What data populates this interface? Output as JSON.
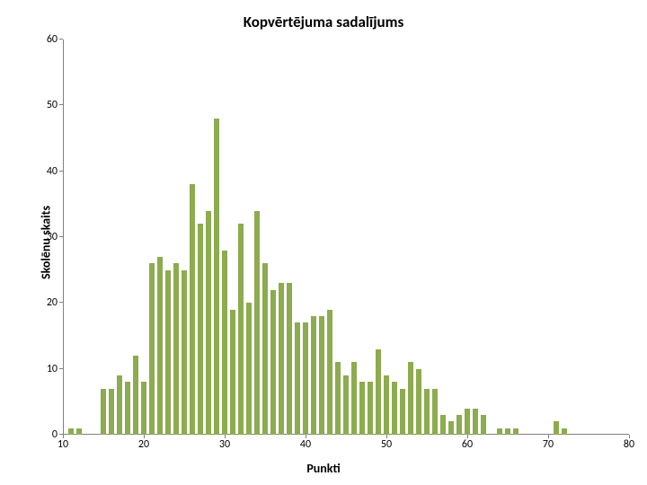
{
  "chart": {
    "type": "bar",
    "title": "Kopvērtējuma sadalījums",
    "title_fontsize": 17,
    "xlabel": "Punkti",
    "ylabel": "Skolēnu skaits",
    "label_fontsize": 14,
    "tick_fontsize": 12,
    "background_color": "#ffffff",
    "axis_color": "#808080",
    "bar_color": "#8dab4f",
    "xlim": [
      10,
      80
    ],
    "ylim": [
      0,
      60
    ],
    "xtick_step": 10,
    "ytick_step": 10,
    "bar_width_ratio": 0.62,
    "categories": [
      11,
      12,
      13,
      14,
      15,
      16,
      17,
      18,
      19,
      20,
      21,
      22,
      23,
      24,
      25,
      26,
      27,
      28,
      29,
      30,
      31,
      32,
      33,
      34,
      35,
      36,
      37,
      38,
      39,
      40,
      41,
      42,
      43,
      44,
      45,
      46,
      47,
      48,
      49,
      50,
      51,
      52,
      53,
      54,
      55,
      56,
      57,
      58,
      59,
      60,
      61,
      62,
      63,
      64,
      65,
      66,
      67,
      68,
      69,
      70,
      71,
      72
    ],
    "values": [
      1,
      1,
      0,
      0,
      7,
      7,
      9,
      8,
      12,
      8,
      26,
      27,
      25,
      26,
      25,
      38,
      32,
      34,
      48,
      28,
      19,
      32,
      20,
      34,
      26,
      22,
      23,
      23,
      17,
      17,
      18,
      18,
      19,
      11,
      9,
      11,
      8,
      8,
      13,
      9,
      8,
      7,
      11,
      10,
      7,
      7,
      3,
      2,
      3,
      4,
      4,
      3,
      0,
      1,
      1,
      1,
      0,
      0,
      0,
      0,
      2,
      1
    ]
  }
}
